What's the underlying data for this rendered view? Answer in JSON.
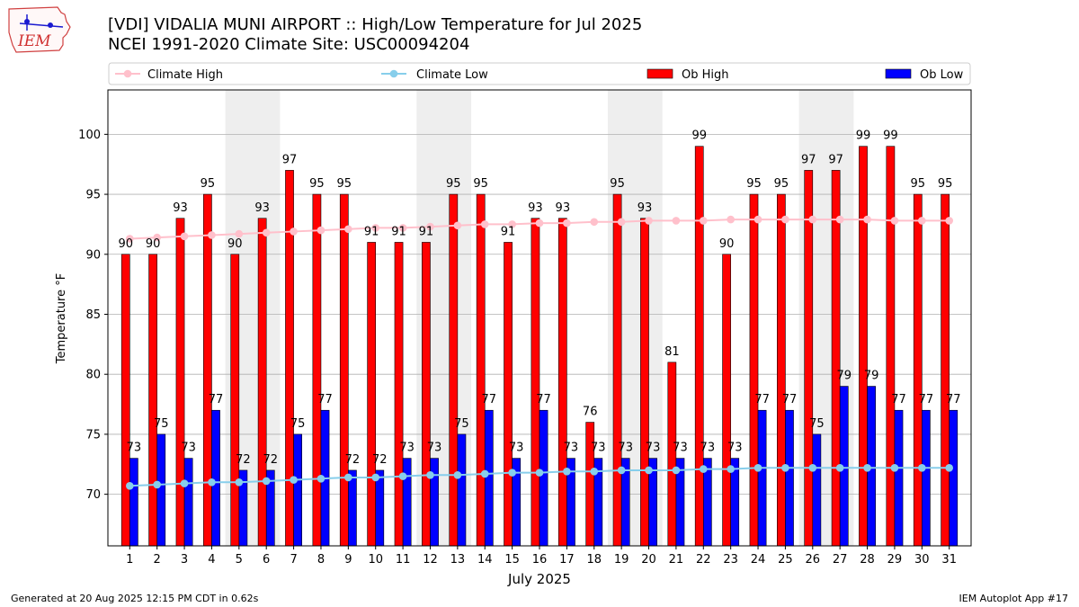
{
  "header": {
    "title_line1": "[VDI] VIDALIA MUNI AIRPORT :: High/Low Temperature for Jul 2025",
    "title_line2": "NCEI 1991-2020 Climate Site: USC00094204",
    "logo_text": "IEM"
  },
  "footer": {
    "generated": "Generated at 20 Aug 2025 12:15 PM CDT in 0.62s",
    "app": "IEM Autoplot App #17"
  },
  "colors": {
    "ob_high": "#ff0000",
    "ob_low": "#0000ff",
    "climate_high": "#ffc0cb",
    "climate_low": "#87ceeb",
    "weekend_band": "#eeeeee",
    "grid": "#b0b0b0"
  },
  "chart_data": {
    "type": "bar",
    "xlabel": "July 2025",
    "ylabel": "Temperature °F",
    "ylim": [
      65.7,
      103.7
    ],
    "yticks": [
      70,
      75,
      80,
      85,
      90,
      95,
      100
    ],
    "grid": "horizontal",
    "legend_position": "top",
    "categories": [
      "1",
      "2",
      "3",
      "4",
      "5",
      "6",
      "7",
      "8",
      "9",
      "10",
      "11",
      "12",
      "13",
      "14",
      "15",
      "16",
      "17",
      "18",
      "19",
      "20",
      "21",
      "22",
      "23",
      "24",
      "25",
      "26",
      "27",
      "28",
      "29",
      "30",
      "31"
    ],
    "shaded_days": [
      5,
      6,
      12,
      13,
      19,
      20,
      26,
      27
    ],
    "series": [
      {
        "name": "Ob High",
        "kind": "bar",
        "values": [
          90,
          90,
          93,
          95,
          90,
          93,
          97,
          95,
          95,
          91,
          91,
          91,
          95,
          95,
          91,
          93,
          93,
          76,
          95,
          93,
          81,
          99,
          90,
          95,
          95,
          97,
          97,
          99,
          99,
          95,
          95
        ]
      },
      {
        "name": "Ob Low",
        "kind": "bar",
        "values": [
          73,
          75,
          73,
          77,
          72,
          72,
          75,
          77,
          72,
          72,
          73,
          73,
          75,
          77,
          73,
          77,
          73,
          73,
          73,
          73,
          73,
          73,
          73,
          77,
          77,
          75,
          79,
          79,
          77,
          77,
          77
        ]
      },
      {
        "name": "Climate High",
        "kind": "line",
        "values": [
          91.3,
          91.4,
          91.5,
          91.6,
          91.7,
          91.8,
          91.9,
          92.0,
          92.1,
          92.2,
          92.2,
          92.3,
          92.4,
          92.5,
          92.5,
          92.6,
          92.6,
          92.7,
          92.7,
          92.8,
          92.8,
          92.8,
          92.9,
          92.9,
          92.9,
          92.9,
          92.9,
          92.9,
          92.8,
          92.8,
          92.8
        ]
      },
      {
        "name": "Climate Low",
        "kind": "line",
        "values": [
          70.7,
          70.8,
          70.9,
          71.0,
          71.0,
          71.1,
          71.2,
          71.3,
          71.4,
          71.4,
          71.5,
          71.6,
          71.6,
          71.7,
          71.8,
          71.8,
          71.9,
          71.9,
          72.0,
          72.0,
          72.0,
          72.1,
          72.1,
          72.2,
          72.2,
          72.2,
          72.2,
          72.2,
          72.2,
          72.2,
          72.2
        ]
      }
    ]
  }
}
